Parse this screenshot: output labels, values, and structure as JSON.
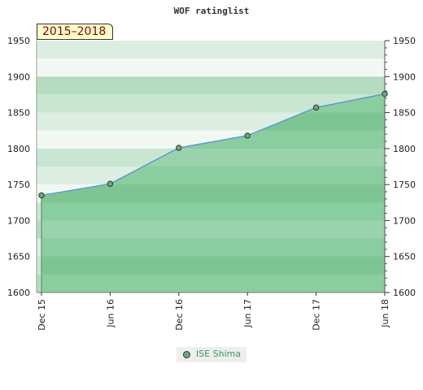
{
  "chart_data": {
    "type": "area",
    "title": "WOF ratinglist",
    "period_label": "2015–2018",
    "categories": [
      "Dec 15",
      "Jun 16",
      "Dec 16",
      "Jun 17",
      "Dec 17",
      "Jun 18"
    ],
    "series": [
      {
        "name": "ISE Shima",
        "values": [
          1735,
          1751,
          1801,
          1818,
          1857,
          1876
        ]
      }
    ],
    "ylim": [
      1600,
      1950
    ],
    "yticks": [
      1600,
      1650,
      1700,
      1750,
      1800,
      1850,
      1900,
      1950
    ],
    "grid": true,
    "legend_position": "bottom-center",
    "colors": {
      "line": "#5b9bd5",
      "area": "#7dc594",
      "marker": "#6aaa78",
      "band_light": "#dceee2",
      "band_dark": "#b5dcc1"
    }
  }
}
